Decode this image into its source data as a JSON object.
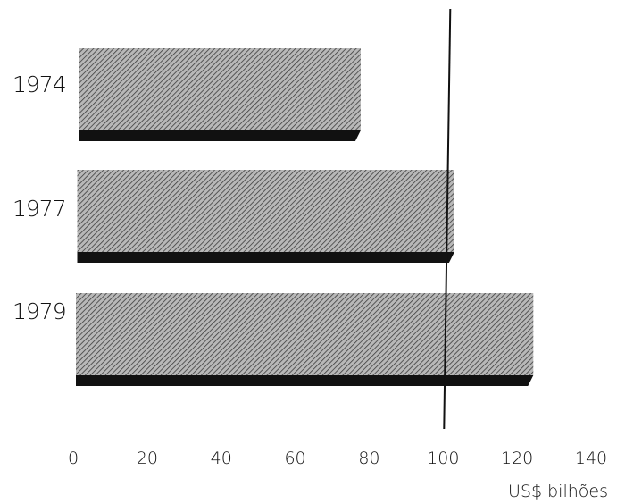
{
  "chart_data": {
    "type": "bar",
    "orientation": "horizontal",
    "categories": [
      "1974",
      "1977",
      "1979"
    ],
    "values": [
      77,
      103,
      125
    ],
    "xlabel": "US$ bilhões",
    "ylabel": "",
    "xlim": [
      0,
      140
    ],
    "xticks": [
      "0",
      "20",
      "40",
      "60",
      "80",
      "100",
      "120",
      "140"
    ],
    "reference_line": 100,
    "grid": false,
    "legend": "none",
    "colors": {
      "bar_fill": "#9a9a9a",
      "bar_shadow": "#111111",
      "hatch": "#444444",
      "reference_line": "#111111",
      "text": "#111111"
    }
  }
}
